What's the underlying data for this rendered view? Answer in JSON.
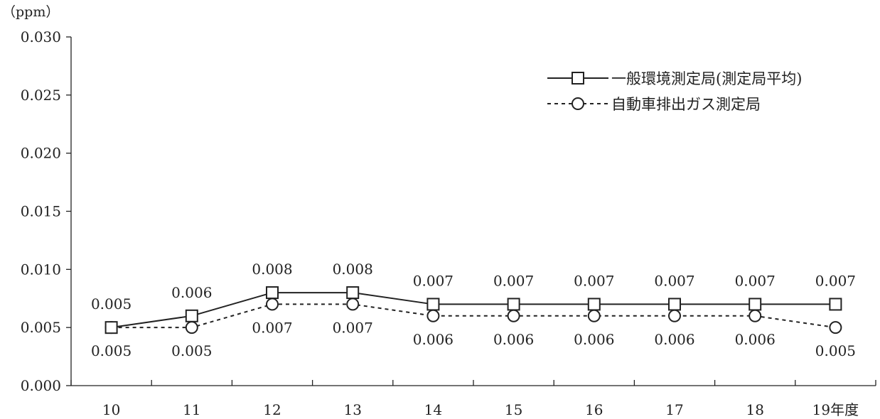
{
  "chart_data": {
    "type": "line",
    "unit": "（ppm）",
    "categories": [
      "10",
      "11",
      "12",
      "13",
      "14",
      "15",
      "16",
      "17",
      "18",
      "19年度"
    ],
    "ylim": [
      0,
      0.03
    ],
    "yticks": [
      "0.000",
      "0.005",
      "0.010",
      "0.015",
      "0.020",
      "0.025",
      "0.030"
    ],
    "grid": false,
    "legend_position": "top-right",
    "series": [
      {
        "name": "一般環境測定局(測定局平均)",
        "values": [
          0.005,
          0.006,
          0.008,
          0.008,
          0.007,
          0.007,
          0.007,
          0.007,
          0.007,
          0.007
        ],
        "labels": [
          "0.005",
          "0.006",
          "0.008",
          "0.008",
          "0.007",
          "0.007",
          "0.007",
          "0.007",
          "0.007",
          "0.007"
        ],
        "marker": "square",
        "line_style": "solid",
        "color": "#222222"
      },
      {
        "name": "自動車排出ガス測定局",
        "values": [
          0.005,
          0.005,
          0.007,
          0.007,
          0.006,
          0.006,
          0.006,
          0.006,
          0.006,
          0.005
        ],
        "labels": [
          "0.005",
          "0.005",
          "0.007",
          "0.007",
          "0.006",
          "0.006",
          "0.006",
          "0.006",
          "0.006",
          "0.005"
        ],
        "marker": "circle",
        "line_style": "dashed",
        "color": "#222222"
      }
    ]
  }
}
